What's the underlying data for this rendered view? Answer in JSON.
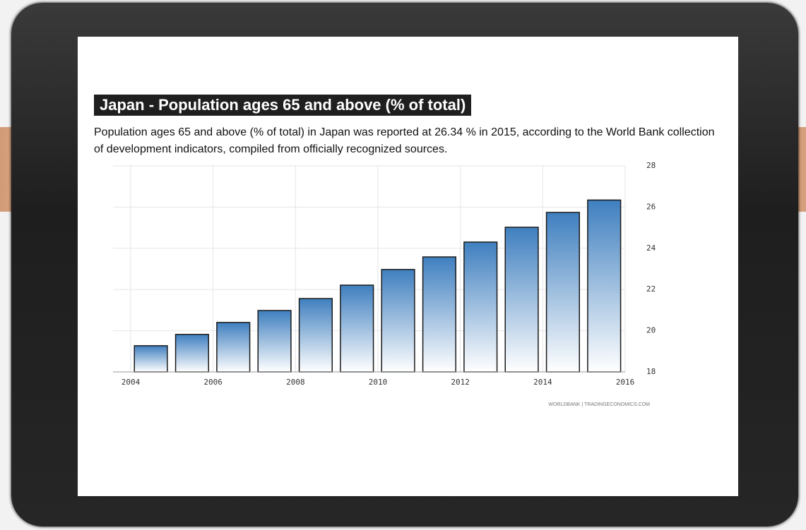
{
  "title": "Japan - Population ages 65 and above (% of total)",
  "description": "Population ages 65 and above (% of total) in Japan was reported at 26.34 % in 2015, according to the World Bank collection of development indicators, compiled from officially recognized sources.",
  "chart_data": {
    "type": "bar",
    "x": [
      2004,
      2005,
      2006,
      2007,
      2008,
      2009,
      2010,
      2011,
      2012,
      2013,
      2014,
      2015
    ],
    "values": [
      19.27,
      19.82,
      20.4,
      20.98,
      21.56,
      22.21,
      22.97,
      23.58,
      24.3,
      25.02,
      25.74,
      26.34
    ],
    "color": "#3f7fbf",
    "xlim": [
      2004,
      2016
    ],
    "xticks": [
      2004,
      2006,
      2008,
      2010,
      2012,
      2014,
      2016
    ],
    "ylim": [
      18,
      28
    ],
    "yticks": [
      18,
      20,
      22,
      24,
      26,
      28
    ],
    "grid": true,
    "source": "WORLDBANK | TRADINGECONOMICS.COM"
  }
}
